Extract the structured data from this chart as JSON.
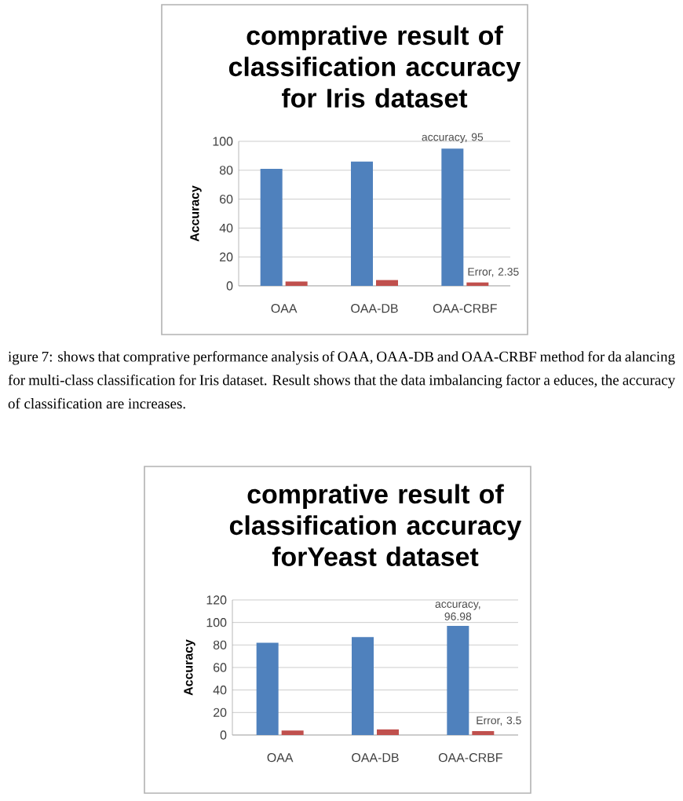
{
  "chart_data": [
    {
      "type": "bar",
      "title": "comprative result of classification accuracy for Iris dataset",
      "ylabel": "Accuracy",
      "categories": [
        "OAA",
        "OAA-DB",
        "OAA-CRBF"
      ],
      "series": [
        {
          "color": "#4f81bd",
          "values": [
            81,
            86,
            95
          ],
          "value_labels": [
            null,
            null,
            "accuracy, 95"
          ]
        },
        {
          "color": "#c0504d",
          "values": [
            3,
            4,
            2.35
          ],
          "value_labels": [
            null,
            null,
            "Error, 2.35"
          ]
        }
      ],
      "ylim": [
        0,
        100
      ],
      "yticks": [
        0,
        20,
        40,
        60,
        80,
        100
      ],
      "grid": "y",
      "annotations": [
        "igure 7: shows that comprative performance analysis of OAA, OAA-DB and OAA-CRBF method for da alancing for multi-class classification for Iris dataset.  Result shows that the data imbalancing factor a educes, the accuracy of classification are increases."
      ]
    },
    {
      "type": "bar",
      "title": "comprative result of classification accuracy forYeast dataset",
      "ylabel": "Accuracy",
      "categories": [
        "OAA",
        "OAA-DB",
        "OAA-CRBF"
      ],
      "series": [
        {
          "color": "#4f81bd",
          "values": [
            82,
            87,
            96.98
          ],
          "value_labels": [
            null,
            null,
            "accuracy, 96.98"
          ]
        },
        {
          "color": "#c0504d",
          "values": [
            4,
            5,
            3.5
          ],
          "value_labels": [
            null,
            null,
            "Error, 3.5"
          ]
        }
      ],
      "ylim": [
        0,
        120
      ],
      "yticks": [
        0,
        20,
        40,
        60,
        80,
        100,
        120
      ],
      "grid": "y"
    }
  ]
}
